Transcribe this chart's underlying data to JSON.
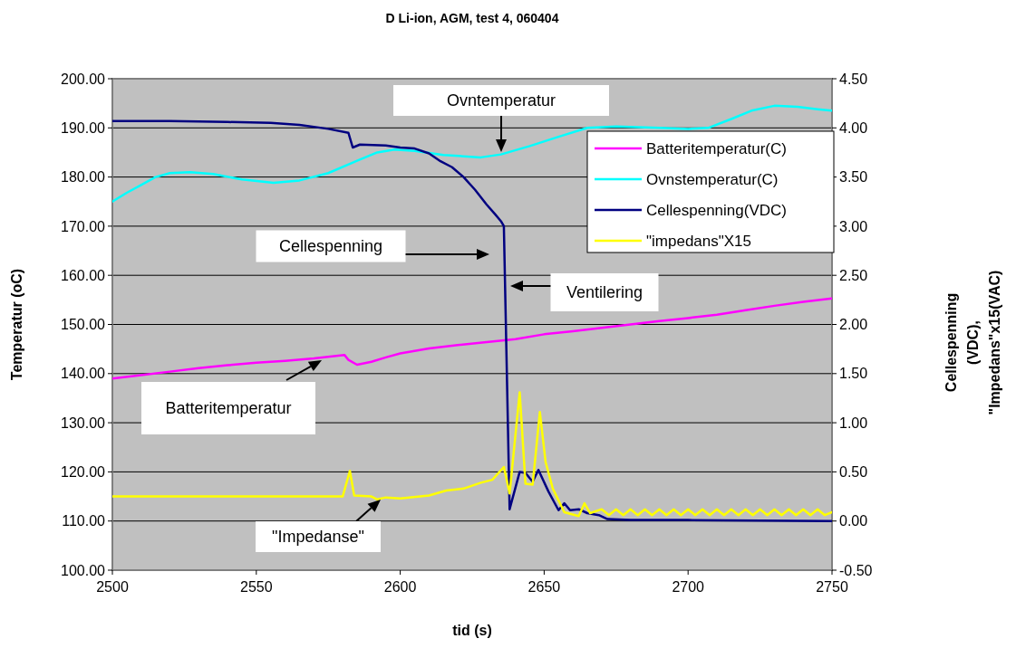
{
  "chart_data": {
    "type": "line",
    "title": "D Li-ion, AGM, test 4, 060404",
    "xlabel": "tid (s)",
    "ylabel": "Temperatur (oC)",
    "y2label": "Cellespenning (VDC), \"Impedans\"x15(VAC)",
    "xlim": [
      2500,
      2750
    ],
    "xticks": [
      2500,
      2550,
      2600,
      2650,
      2700,
      2750
    ],
    "ylim": [
      100,
      200
    ],
    "yticks": [
      {
        "value": 100,
        "label": "100.00"
      },
      {
        "value": 110,
        "label": "110.00"
      },
      {
        "value": 120,
        "label": "120.00"
      },
      {
        "value": 130,
        "label": "130.00"
      },
      {
        "value": 140,
        "label": "140.00"
      },
      {
        "value": 150,
        "label": "150.00"
      },
      {
        "value": 160,
        "label": "160.00"
      },
      {
        "value": 170,
        "label": "170.00"
      },
      {
        "value": 180,
        "label": "180.00"
      },
      {
        "value": 190,
        "label": "190.00"
      },
      {
        "value": 200,
        "label": "200.00"
      }
    ],
    "y2lim": [
      -0.5,
      4.5
    ],
    "y2ticks": [
      {
        "value": -0.5,
        "label": "-0.50"
      },
      {
        "value": 0,
        "label": "0.00"
      },
      {
        "value": 0.5,
        "label": "0.50"
      },
      {
        "value": 1,
        "label": "1.00"
      },
      {
        "value": 1.5,
        "label": "1.50"
      },
      {
        "value": 2,
        "label": "2.00"
      },
      {
        "value": 2.5,
        "label": "2.50"
      },
      {
        "value": 3,
        "label": "3.00"
      },
      {
        "value": 3.5,
        "label": "3.50"
      },
      {
        "value": 4,
        "label": "4.00"
      },
      {
        "value": 4.5,
        "label": "4.50"
      }
    ],
    "grid": "y",
    "legend": "top right",
    "marker": "none",
    "line_style": "solid",
    "series": [
      {
        "name": "Batteritemperatur(C)",
        "color": "#ff00ff",
        "x": [
          2500,
          2510,
          2520,
          2530,
          2540,
          2550,
          2560,
          2570,
          2580.6,
          2582,
          2585,
          2590,
          2595,
          2600,
          2610,
          2620,
          2630,
          2640,
          2650,
          2660,
          2670,
          2680,
          2690,
          2700,
          2710,
          2720,
          2730,
          2740,
          2750
        ],
        "values": [
          139.0,
          139.7,
          140.4,
          141.1,
          141.7,
          142.2,
          142.6,
          143.1,
          143.8,
          142.8,
          141.8,
          142.4,
          143.3,
          144.1,
          145.1,
          145.8,
          146.4,
          147.0,
          148.0,
          148.6,
          149.3,
          150.0,
          150.7,
          151.3,
          152.0,
          152.9,
          153.8,
          154.6,
          155.3
        ]
      },
      {
        "name": "Ovnstemperatur(C)",
        "color": "#00ffff",
        "x": [
          2500,
          2505,
          2510,
          2515,
          2520,
          2527,
          2535,
          2545,
          2556,
          2565,
          2575,
          2585,
          2592,
          2598,
          2605,
          2615,
          2628,
          2635,
          2645,
          2655,
          2665,
          2675,
          2690,
          2700,
          2707,
          2715,
          2722,
          2730,
          2738,
          2745,
          2750
        ],
        "values": [
          175.0,
          176.8,
          178.4,
          180.0,
          180.8,
          181.0,
          180.6,
          179.5,
          178.8,
          179.3,
          180.8,
          183.3,
          185.0,
          185.6,
          185.3,
          184.5,
          184.0,
          184.6,
          186.3,
          188.2,
          190.0,
          190.3,
          190.0,
          189.8,
          190.0,
          191.8,
          193.5,
          194.5,
          194.3,
          193.8,
          193.5
        ]
      },
      {
        "name": "Cellespenning(VDC)",
        "color": "#000080",
        "axis": "y2",
        "x": [
          2500,
          2520,
          2540,
          2555,
          2565,
          2575,
          2582,
          2583.5,
          2586,
          2595,
          2600,
          2605,
          2610,
          2614,
          2618,
          2622,
          2626,
          2630,
          2633,
          2635,
          2636,
          2638,
          2641.5,
          2643.5,
          2646,
          2648,
          2651.5,
          2655,
          2657,
          2659,
          2662,
          2665,
          2669,
          2672,
          2680,
          2700,
          2750
        ],
        "values": [
          4.07,
          4.07,
          4.06,
          4.05,
          4.03,
          3.99,
          3.95,
          3.8,
          3.83,
          3.82,
          3.8,
          3.79,
          3.74,
          3.66,
          3.6,
          3.5,
          3.37,
          3.22,
          3.12,
          3.05,
          3.0,
          0.12,
          0.5,
          0.49,
          0.4,
          0.52,
          0.3,
          0.11,
          0.18,
          0.11,
          0.12,
          0.08,
          0.06,
          0.02,
          0.01,
          0.01,
          0.0
        ]
      },
      {
        "name": "\"impedans\"X15",
        "color": "#ffff00",
        "axis": "y2",
        "x": [
          2500,
          2540,
          2580,
          2582.5,
          2584,
          2590,
          2592,
          2595,
          2600,
          2610,
          2616,
          2622,
          2628,
          2632,
          2636,
          2638,
          2641.5,
          2643.5,
          2646,
          2648.5,
          2650.5,
          2653,
          2657,
          2662,
          2664,
          2666,
          2670,
          2672.5,
          2675,
          2677.5,
          2680,
          2682.5,
          2685,
          2687.5,
          2690,
          2692.5,
          2695,
          2697.5,
          2700,
          2702.5,
          2705,
          2707.5,
          2710,
          2712.5,
          2715,
          2717.5,
          2720,
          2722.5,
          2725,
          2727.5,
          2730,
          2732.5,
          2735,
          2737.5,
          2740,
          2742.5,
          2745,
          2747.5,
          2750
        ],
        "values": [
          0.25,
          0.25,
          0.25,
          0.51,
          0.26,
          0.25,
          0.22,
          0.24,
          0.23,
          0.26,
          0.31,
          0.33,
          0.39,
          0.42,
          0.55,
          0.28,
          1.31,
          0.38,
          0.37,
          1.11,
          0.6,
          0.33,
          0.09,
          0.05,
          0.18,
          0.08,
          0.12,
          0.06,
          0.12,
          0.06,
          0.12,
          0.06,
          0.12,
          0.06,
          0.12,
          0.06,
          0.12,
          0.06,
          0.12,
          0.06,
          0.12,
          0.06,
          0.12,
          0.06,
          0.12,
          0.06,
          0.12,
          0.06,
          0.12,
          0.06,
          0.12,
          0.06,
          0.12,
          0.06,
          0.12,
          0.06,
          0.12,
          0.06,
          0.09
        ]
      }
    ],
    "annotations": [
      "Ovntemperatur",
      "Cellespenning",
      "Ventilering",
      "Batteritemperatur",
      "\"Impedanse\""
    ]
  }
}
